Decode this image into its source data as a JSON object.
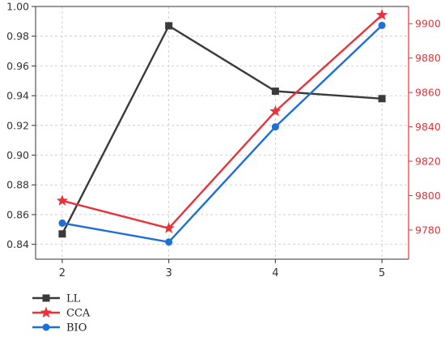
{
  "chart_data": {
    "type": "line",
    "title": "",
    "xlabel": "",
    "ylabel": "",
    "y2label": "",
    "categories": [
      "2",
      "3",
      "4",
      "5"
    ],
    "x": [
      2,
      3,
      4,
      5
    ],
    "xlim": [
      1.75,
      5.25
    ],
    "ylim": [
      0.83,
      1.0
    ],
    "y2lim": [
      9763,
      9910
    ],
    "yticks": [
      "0.84",
      "0.86",
      "0.88",
      "0.90",
      "0.92",
      "0.94",
      "0.96",
      "0.98",
      "1.00"
    ],
    "y2ticks": [
      "9780",
      "9800",
      "9820",
      "9840",
      "9860",
      "9880",
      "9900"
    ],
    "grid": true,
    "legend_position": "bottom-left",
    "series": [
      {
        "name": "LL",
        "axis": "left",
        "color": "#3a3a3a",
        "marker": "square",
        "values": [
          0.847,
          0.987,
          0.943,
          0.938
        ]
      },
      {
        "name": "CCA",
        "axis": "right",
        "color": "#e8333b",
        "marker": "star",
        "values": [
          9797,
          9781,
          9849,
          9905
        ]
      },
      {
        "name": "BIO",
        "axis": "right",
        "color": "#1e6fd9",
        "marker": "circle",
        "values": [
          9784,
          9773,
          9840,
          9899
        ]
      }
    ],
    "axis_colors": {
      "left": "#333333",
      "right": "#e8333b"
    }
  }
}
